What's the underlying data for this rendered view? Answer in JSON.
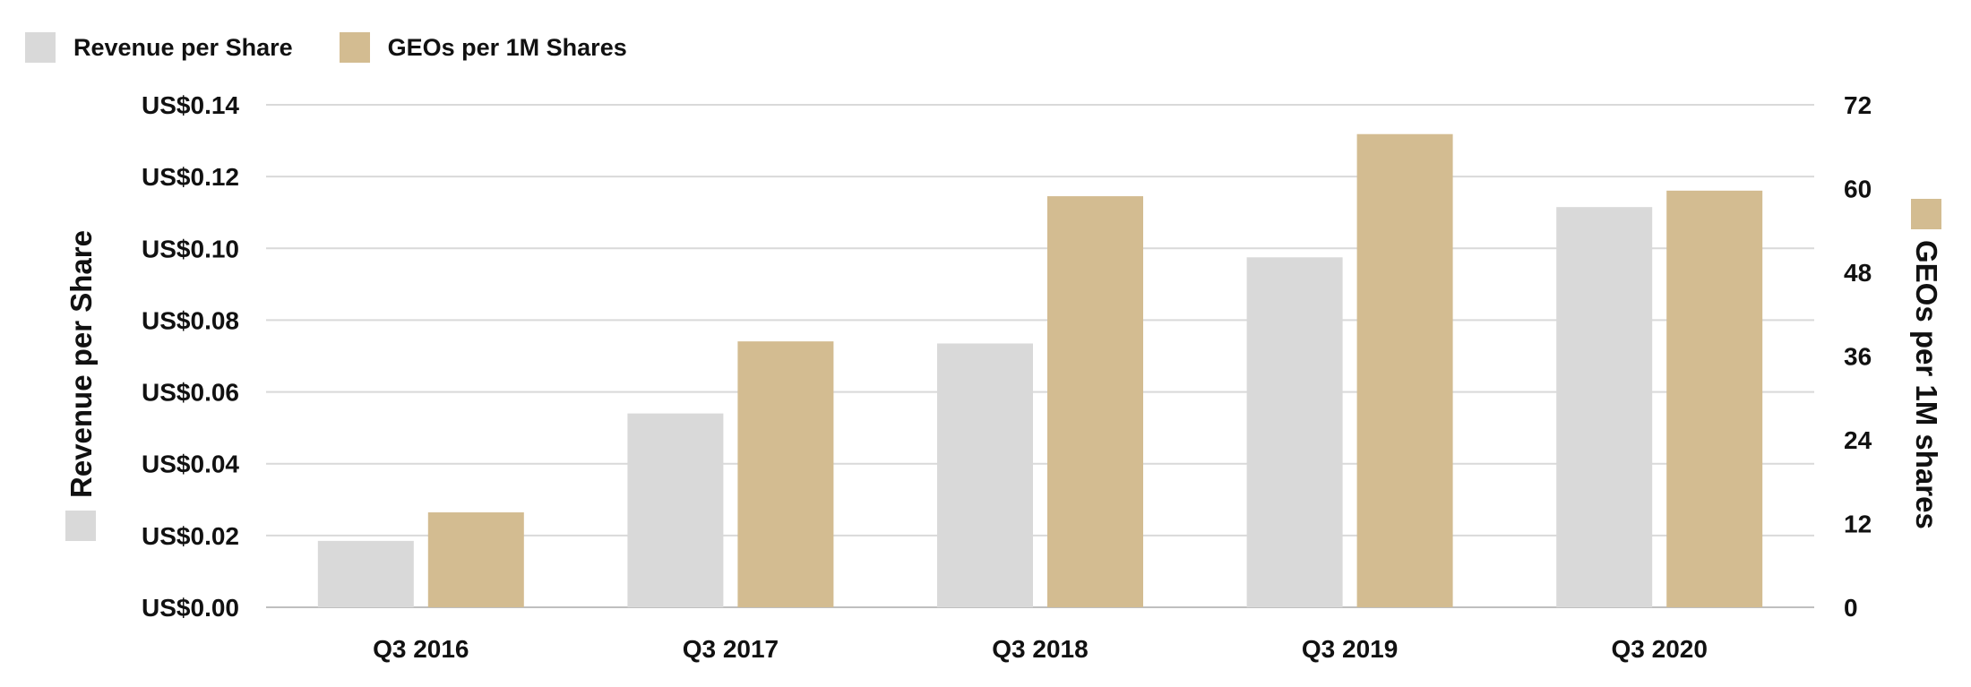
{
  "legend": {
    "revenue_label": "Revenue per Share",
    "geos_label": "GEOs per 1M Shares"
  },
  "chart_data": {
    "type": "bar",
    "categories": [
      "Q3 2016",
      "Q3 2017",
      "Q3 2018",
      "Q3 2019",
      "Q3 2020"
    ],
    "series": [
      {
        "name": "Revenue per Share",
        "axis": "left",
        "color": "#d9d9d9",
        "values": [
          0.0185,
          0.054,
          0.0735,
          0.0975,
          0.1115
        ]
      },
      {
        "name": "GEOs per 1M Shares",
        "axis": "right",
        "color": "#d3bc91",
        "values": [
          13.6,
          38.1,
          58.9,
          67.8,
          59.7
        ]
      }
    ],
    "ylabel": "Revenue per Share",
    "y2label": "GEOs per 1M shares",
    "ylim": [
      0,
      0.14
    ],
    "y2lim": [
      0,
      72
    ],
    "yticks": [
      "US$0.00",
      "US$0.02",
      "US$0.04",
      "US$0.06",
      "US$0.08",
      "US$0.10",
      "US$0.12",
      "US$0.14"
    ],
    "y2ticks": [
      "0",
      "12",
      "24",
      "36",
      "48",
      "60",
      "72"
    ],
    "grid": true,
    "legend_position": "top-left"
  }
}
